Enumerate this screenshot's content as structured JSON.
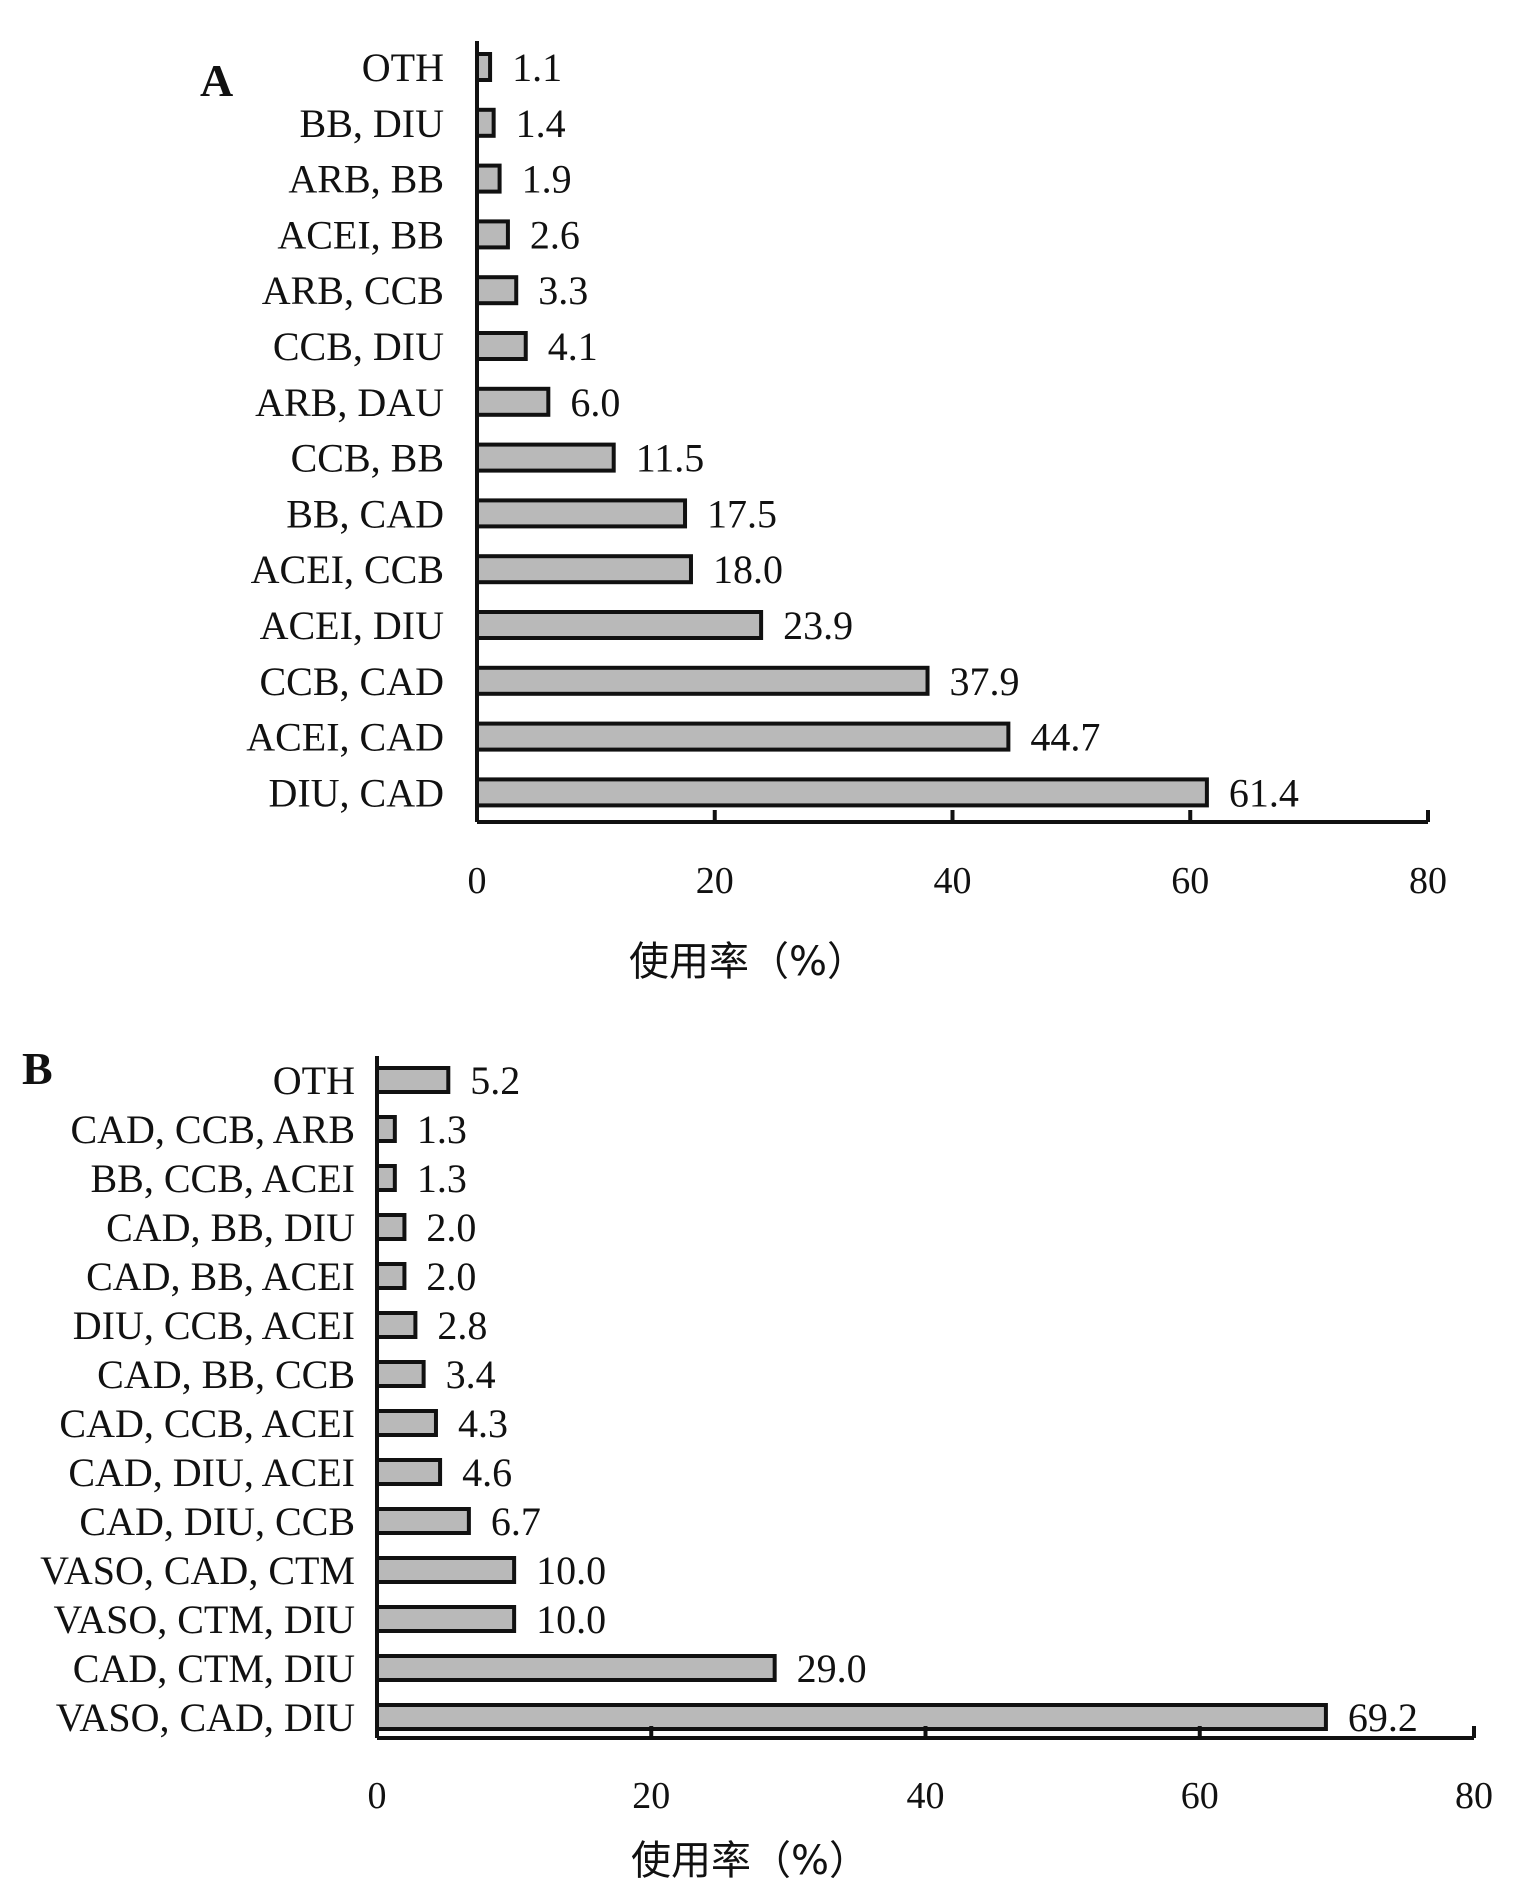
{
  "colors": {
    "bar_fill": "#b9b9b9",
    "ink": "#111111",
    "background": "#ffffff"
  },
  "chart_data": [
    {
      "type": "bar",
      "orientation": "horizontal",
      "panel_label": "A",
      "categories": [
        "OTH",
        "BB, DIU",
        "ARB, BB",
        "ACEI, BB",
        "ARB, CCB",
        "CCB, DIU",
        "ARB, DAU",
        "CCB, BB",
        "BB, CAD",
        "ACEI, CCB",
        "ACEI, DIU",
        "CCB, CAD",
        "ACEI, CAD",
        "DIU, CAD"
      ],
      "values": [
        1.1,
        1.4,
        1.9,
        2.6,
        3.3,
        4.1,
        6.0,
        11.5,
        17.5,
        18.0,
        23.9,
        37.9,
        44.7,
        61.4
      ],
      "value_labels": [
        "1.1",
        "1.4",
        "1.9",
        "2.6",
        "3.3",
        "4.1",
        "6.0",
        "11.5",
        "17.5",
        "18.0",
        "23.9",
        "37.9",
        "44.7",
        "61.4"
      ],
      "xlabel": "使用率（%）",
      "xlim": [
        0,
        80
      ],
      "xticks": [
        "0",
        "20",
        "40",
        "60",
        "80"
      ],
      "grid": false
    },
    {
      "type": "bar",
      "orientation": "horizontal",
      "panel_label": "B",
      "categories": [
        "OTH",
        "CAD, CCB, ARB",
        "BB, CCB, ACEI",
        "CAD, BB, DIU",
        "CAD, BB, ACEI",
        "DIU, CCB, ACEI",
        "CAD, BB, CCB",
        "CAD, CCB, ACEI",
        "CAD, DIU, ACEI",
        "CAD, DIU, CCB",
        "VASO, CAD, CTM",
        "VASO, CTM, DIU",
        "CAD, CTM, DIU",
        "VASO, CAD, DIU"
      ],
      "values": [
        5.2,
        1.3,
        1.3,
        2.0,
        2.0,
        2.8,
        3.4,
        4.3,
        4.6,
        6.7,
        10.0,
        10.0,
        29.0,
        69.2
      ],
      "value_labels": [
        "5.2",
        "1.3",
        "1.3",
        "2.0",
        "2.0",
        "2.8",
        "3.4",
        "4.3",
        "4.6",
        "6.7",
        "10.0",
        "10.0",
        "29.0",
        "69.2"
      ],
      "xlabel": "使用率（%）",
      "xlim": [
        0,
        80
      ],
      "xticks": [
        "0",
        "20",
        "40",
        "60",
        "80"
      ],
      "grid": false
    }
  ]
}
